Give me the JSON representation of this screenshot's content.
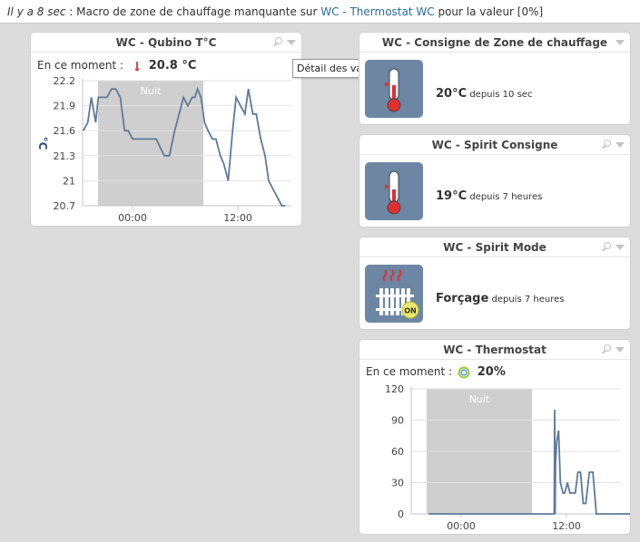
{
  "topbar": {
    "ago": "Il y a 8 sec",
    "sep": " : ",
    "msg1": "Macro de zone de chauffage manquante sur ",
    "link1": "WC - Thermostat",
    "msg_sp": " ",
    "link2": "WC",
    "msg2": " pour la valeur [0%]"
  },
  "tooltip": "Détail des valeurs",
  "widgets": {
    "qubino": {
      "title": "WC - Qubino T°C",
      "now_label": "En ce moment :",
      "now_value": "20.8 °C",
      "chart": {
        "night_label": "Nuit",
        "ylabel": "°C",
        "yticks": [
          "22.2",
          "21.9",
          "21.6",
          "21.3",
          "21",
          "20.7"
        ],
        "xticks": [
          "00:00",
          "12:00"
        ]
      }
    },
    "consigne_zone": {
      "title": "WC - Consigne de Zone de chauffage",
      "value": "20°C",
      "since": "depuis 10 sec",
      "icon": "thermometer-icon"
    },
    "spirit_consigne": {
      "title": "WC - Spirit Consigne",
      "value": "19°C",
      "since": "depuis 7 heures",
      "icon": "thermometer-icon"
    },
    "spirit_mode": {
      "title": "WC - Spirit Mode",
      "value": "Forçage",
      "since": "depuis 7 heures",
      "icon": "radiator-icon",
      "badge": "ON"
    },
    "thermostat": {
      "title": "WC - Thermostat",
      "now_label": "En ce moment :",
      "now_value": "20%",
      "chart": {
        "night_label": "Nuit",
        "yticks": [
          "120",
          "90",
          "60",
          "30",
          "0"
        ],
        "xticks": [
          "00:00",
          "12:00"
        ]
      }
    }
  },
  "chart_data": [
    {
      "type": "line",
      "title": "WC - Qubino T°C",
      "ylabel": "°C",
      "ylim": [
        20.7,
        22.2
      ],
      "x_unit": "hours",
      "xticks": [
        "00:00",
        "12:00"
      ],
      "series": [
        {
          "x": [
            -5.6,
            -5.1,
            -4.7,
            -4.2,
            -3.9,
            -3.4,
            -2.9,
            -2.4,
            -1.9,
            -1.4,
            -0.9,
            -0.5,
            0.0,
            0.9,
            1.9,
            2.7,
            3.6,
            4.2,
            4.8,
            5.3,
            5.8,
            6.3,
            6.8,
            7.1,
            7.4,
            7.8,
            8.2,
            8.6,
            9.1,
            9.5,
            10.0,
            10.4,
            10.9,
            11.4,
            11.8,
            12.3,
            12.8,
            13.2,
            13.7,
            14.1,
            14.6,
            15.1,
            15.5,
            16.0,
            16.5,
            17.0,
            17.4
          ],
          "y": [
            21.6,
            21.7,
            22.0,
            21.7,
            22.0,
            22.0,
            22.0,
            22.1,
            22.1,
            22.0,
            21.6,
            21.6,
            21.5,
            21.5,
            21.5,
            21.5,
            21.3,
            21.3,
            21.6,
            21.8,
            22.0,
            21.9,
            22.0,
            22.0,
            22.1,
            22.0,
            21.7,
            21.6,
            21.5,
            21.5,
            21.3,
            21.2,
            21.0,
            21.6,
            22.0,
            21.9,
            21.8,
            22.1,
            21.8,
            21.8,
            21.5,
            21.3,
            21.0,
            20.9,
            20.8,
            20.7,
            20.7
          ]
        }
      ]
    },
    {
      "type": "line",
      "title": "WC - Thermostat",
      "ylim": [
        0,
        120
      ],
      "x_unit": "hours",
      "xticks": [
        "00:00",
        "12:00"
      ],
      "series": [
        {
          "x": [
            -3.7,
            10.6,
            10.65,
            10.7,
            10.75,
            10.9,
            11.1,
            11.3,
            11.6,
            11.8,
            12.1,
            12.4,
            12.7,
            13.0,
            13.3,
            13.6,
            13.9,
            14.2,
            14.6,
            15.0,
            15.4,
            15.8,
            16.2,
            16.6,
            17.0,
            17.4,
            17.8,
            18.2,
            18.6,
            19.0,
            19.4,
            19.8
          ],
          "y": [
            0,
            0,
            100,
            0,
            50,
            70,
            80,
            30,
            20,
            20,
            30,
            20,
            20,
            20,
            40,
            40,
            10,
            10,
            40,
            40,
            0,
            0,
            0,
            0,
            0,
            0,
            0,
            0,
            0,
            0,
            0,
            20
          ]
        }
      ]
    }
  ]
}
